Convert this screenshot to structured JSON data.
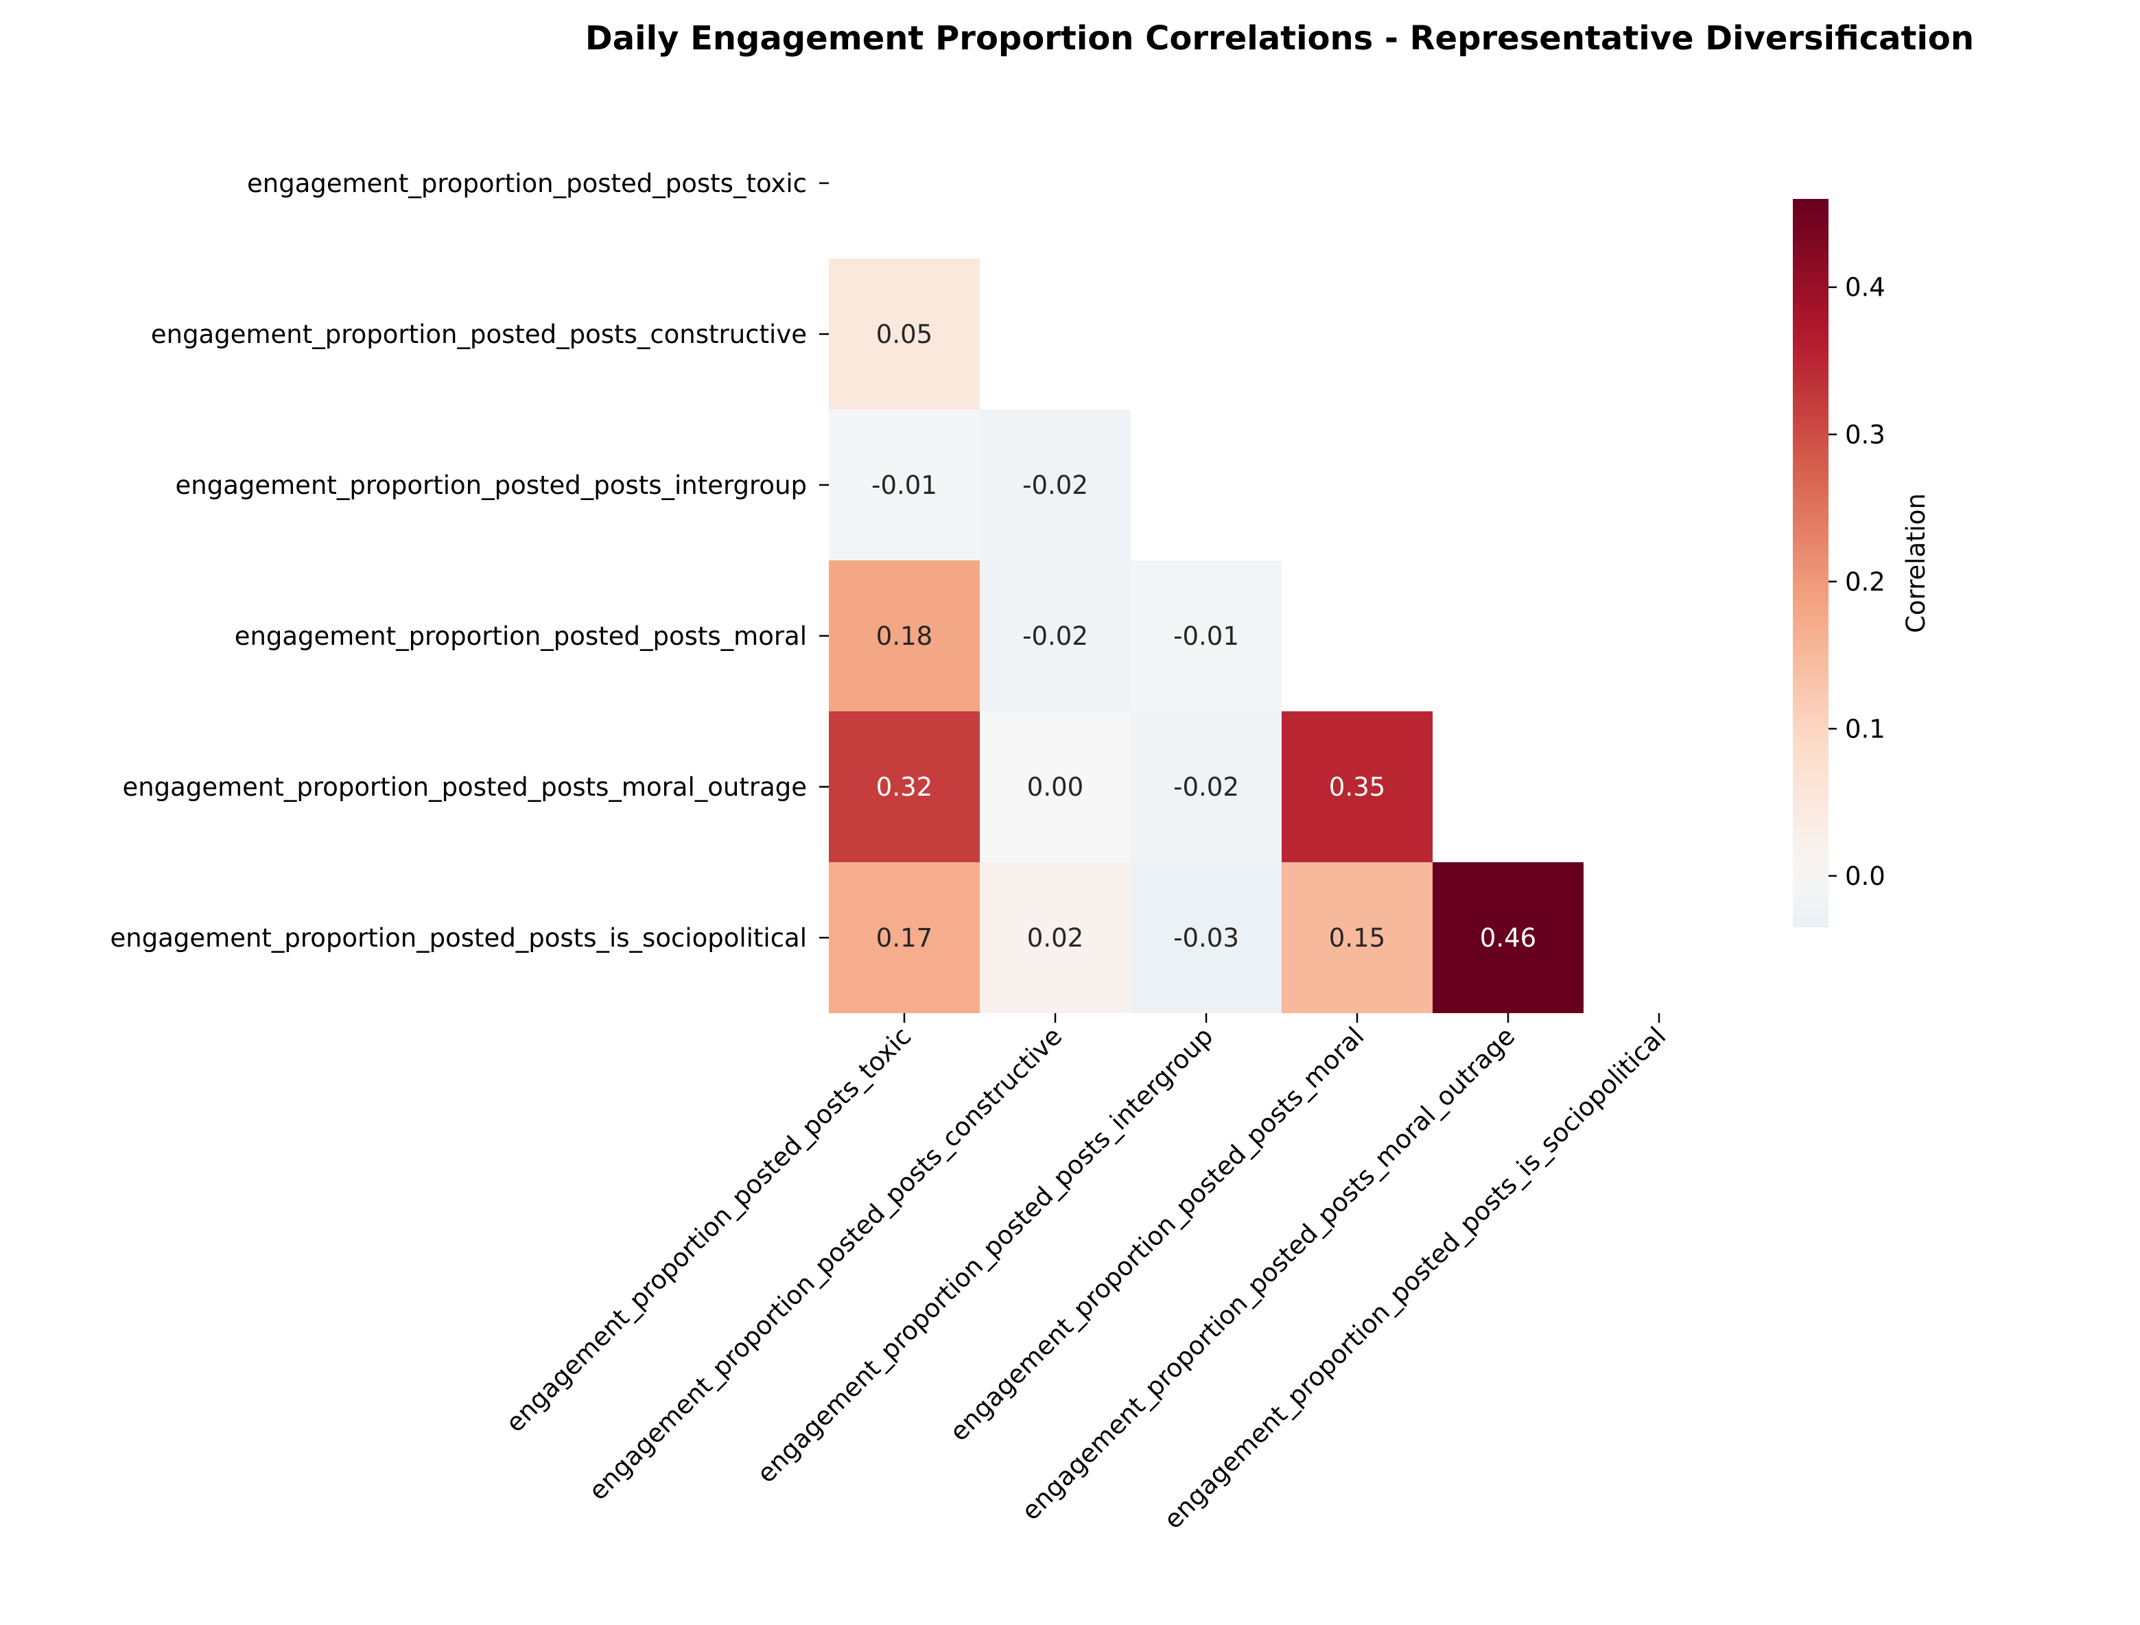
{
  "chart_data": {
    "type": "heatmap",
    "title": "Daily Engagement Proportion Correlations - Representative Diversification",
    "variables": [
      "engagement_proportion_posted_posts_toxic",
      "engagement_proportion_posted_posts_constructive",
      "engagement_proportion_posted_posts_intergroup",
      "engagement_proportion_posted_posts_moral",
      "engagement_proportion_posted_posts_moral_outrage",
      "engagement_proportion_posted_posts_is_sociopolitical"
    ],
    "mask": "upper-triangle-and-diagonal",
    "values": [
      [
        null,
        null,
        null,
        null,
        null,
        null
      ],
      [
        0.05,
        null,
        null,
        null,
        null,
        null
      ],
      [
        -0.01,
        -0.02,
        null,
        null,
        null,
        null
      ],
      [
        0.18,
        -0.02,
        -0.01,
        null,
        null,
        null
      ],
      [
        0.32,
        0.0,
        -0.02,
        0.35,
        null,
        null
      ],
      [
        0.17,
        0.02,
        -0.03,
        0.15,
        0.46,
        null
      ]
    ],
    "value_format": "0.00",
    "colormap": "RdBu_r",
    "color_range": [
      -0.46,
      0.46
    ],
    "colorbar": {
      "label": "Correlation",
      "ticks": [
        "0.0",
        "0.1",
        "0.2",
        "0.3",
        "0.4"
      ],
      "tick_values": [
        0.0,
        0.1,
        0.2,
        0.3,
        0.4
      ],
      "visible_range": [
        -0.035,
        0.46
      ]
    }
  }
}
